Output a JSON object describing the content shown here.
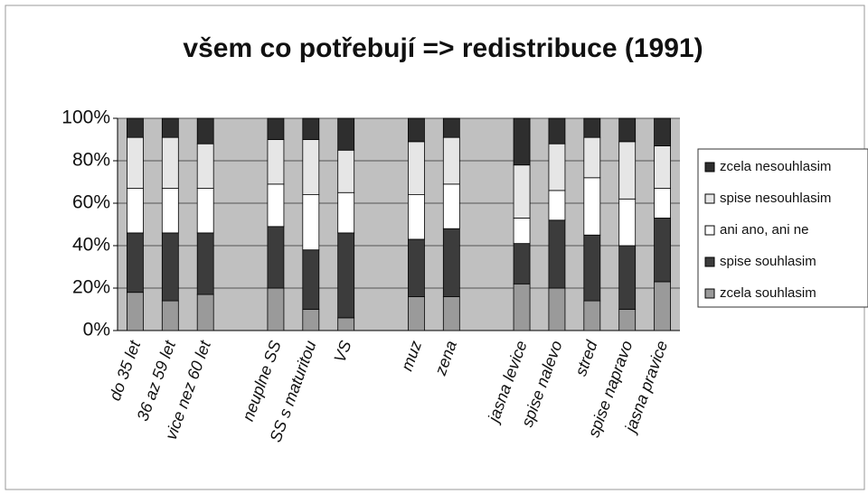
{
  "chart_data": {
    "type": "stacked_bar_100",
    "title": "všem co potřebují => redistribuce (1991)",
    "categories": [
      "do 35 let",
      "36 az 59 let",
      "vice nez 60 let",
      null,
      "neuplne SS",
      "SS s maturitou",
      "VS",
      null,
      "muz",
      "zena",
      null,
      "jasna levice",
      "spise nalevo",
      "stred",
      "spise napravo",
      "jasna pravice"
    ],
    "series": [
      {
        "name": "zcela souhlasim",
        "color": "#9a9a9a",
        "values": [
          18,
          14,
          17,
          null,
          20,
          10,
          6,
          null,
          16,
          16,
          null,
          22,
          20,
          14,
          10,
          23
        ]
      },
      {
        "name": "spise souhlasim",
        "color": "#3c3c3c",
        "values": [
          28,
          32,
          29,
          null,
          29,
          28,
          40,
          null,
          27,
          32,
          null,
          19,
          32,
          31,
          30,
          30
        ]
      },
      {
        "name": "ani ano, ani ne",
        "color": "#ffffff",
        "values": [
          21,
          21,
          21,
          null,
          20,
          26,
          19,
          null,
          21,
          21,
          null,
          12,
          14,
          27,
          22,
          14
        ]
      },
      {
        "name": "spise nesouhlasim",
        "color": "#e6e6e6",
        "values": [
          24,
          24,
          21,
          null,
          21,
          26,
          20,
          null,
          25,
          22,
          null,
          25,
          22,
          19,
          27,
          20
        ]
      },
      {
        "name": "zcela nesouhlasim",
        "color": "#2e2e2e",
        "values": [
          9,
          9,
          12,
          null,
          10,
          10,
          15,
          null,
          11,
          9,
          null,
          22,
          12,
          9,
          11,
          13
        ]
      }
    ],
    "ylim": [
      0,
      100
    ],
    "yticks": [
      {
        "value": 0,
        "label": "0%"
      },
      {
        "value": 20,
        "label": "20%"
      },
      {
        "value": 40,
        "label": "40%"
      },
      {
        "value": 60,
        "label": "60%"
      },
      {
        "value": 80,
        "label": "80%"
      },
      {
        "value": 100,
        "label": "100%"
      }
    ],
    "grid": true,
    "legend": "right"
  }
}
